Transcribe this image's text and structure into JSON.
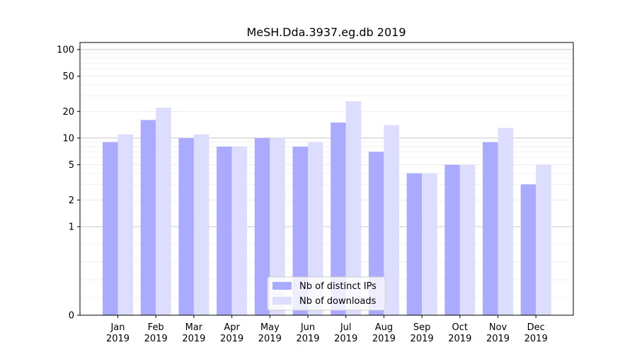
{
  "chart_data": {
    "type": "bar",
    "title": "MeSH.Dda.3937.eg.db 2019",
    "categories": [
      [
        "Jan",
        "2019"
      ],
      [
        "Feb",
        "2019"
      ],
      [
        "Mar",
        "2019"
      ],
      [
        "Apr",
        "2019"
      ],
      [
        "May",
        "2019"
      ],
      [
        "Jun",
        "2019"
      ],
      [
        "Jul",
        "2019"
      ],
      [
        "Aug",
        "2019"
      ],
      [
        "Sep",
        "2019"
      ],
      [
        "Oct",
        "2019"
      ],
      [
        "Nov",
        "2019"
      ],
      [
        "Dec",
        "2019"
      ]
    ],
    "series": [
      {
        "name": "Nb of distinct IPs",
        "color": "#aaaaff",
        "values": [
          9,
          16,
          10,
          8,
          10,
          8,
          15,
          7,
          4,
          5,
          9,
          3
        ]
      },
      {
        "name": "Nb of downloads",
        "color": "#ddddff",
        "values": [
          11,
          22,
          11,
          8,
          10,
          9,
          26,
          14,
          4,
          5,
          13,
          5
        ]
      }
    ],
    "y_scale": "symlog",
    "y_ticks": [
      0,
      1,
      2,
      5,
      10,
      20,
      50,
      100
    ],
    "ylim": [
      0,
      120
    ],
    "grid": true,
    "legend_position": "bottom-center"
  }
}
